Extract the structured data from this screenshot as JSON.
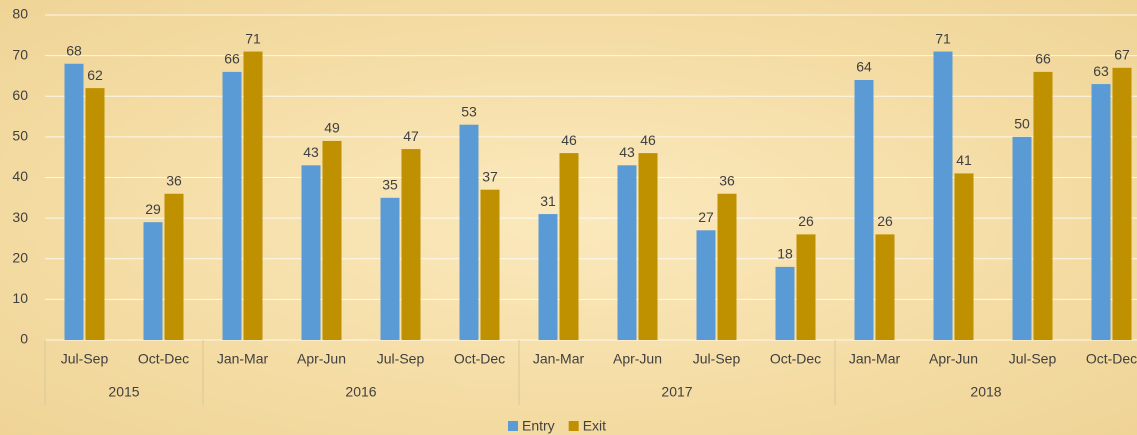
{
  "chart_data": {
    "type": "bar",
    "categories": [
      "Jul-Sep",
      "Oct-Dec",
      "Jan-Mar",
      "Apr-Jun",
      "Jul-Sep",
      "Oct-Dec",
      "Jan-Mar",
      "Apr-Jun",
      "Jul-Sep",
      "Oct-Dec",
      "Jan-Mar",
      "Apr-Jun",
      "Jul-Sep",
      "Oct-Dec"
    ],
    "category_groups": [
      {
        "label": "2015",
        "count": 2
      },
      {
        "label": "2016",
        "count": 4
      },
      {
        "label": "2017",
        "count": 4
      },
      {
        "label": "2018",
        "count": 4
      }
    ],
    "series": [
      {
        "name": "Entry",
        "color": "#5b9bd5",
        "values": [
          68,
          29,
          66,
          43,
          35,
          53,
          31,
          43,
          27,
          18,
          64,
          71,
          50,
          63
        ]
      },
      {
        "name": "Exit",
        "color": "#bf9000",
        "values": [
          62,
          36,
          71,
          49,
          47,
          37,
          46,
          46,
          36,
          26,
          26,
          41,
          66,
          67
        ]
      }
    ],
    "ylim": [
      0,
      80
    ],
    "yticks": [
      0,
      10,
      20,
      30,
      40,
      50,
      60,
      70,
      80
    ],
    "grid": true,
    "legend": "bottom"
  }
}
